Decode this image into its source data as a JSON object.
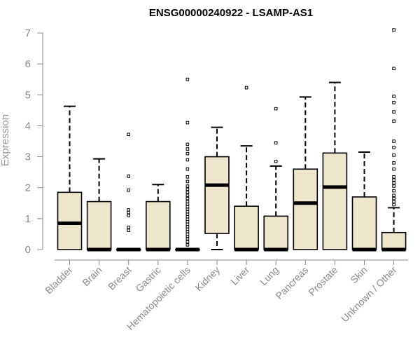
{
  "chart_data": {
    "type": "box",
    "title": "ENSG00000240922 - LSAMP-AS1",
    "xlabel": "",
    "ylabel": "Expression",
    "ylim": [
      0,
      7
    ],
    "yticks": [
      "0",
      "1",
      "2",
      "3",
      "4",
      "5",
      "6",
      "7"
    ],
    "grid": false,
    "colors": {
      "box_fill": "#ede6cd",
      "box_stroke": "#000000",
      "axis": "#8a8a8a"
    },
    "categories": [
      "Bladder",
      "Brain",
      "Breast",
      "Gastric",
      "Hematopoietic cells",
      "Kidney",
      "Liver",
      "Lung",
      "Pancreas",
      "Prostate",
      "Skin",
      "Unknown / Other"
    ],
    "boxes": [
      {
        "q1": 0,
        "median": 0.85,
        "q3": 1.85,
        "whisker_low": 0,
        "whisker_high": 4.63,
        "outliers": []
      },
      {
        "q1": 0,
        "median": 0,
        "q3": 1.55,
        "whisker_low": 0,
        "whisker_high": 2.93,
        "outliers": []
      },
      {
        "q1": 0,
        "median": 0,
        "q3": 0,
        "whisker_low": 0,
        "whisker_high": 0,
        "outliers": [
          0.62,
          0.72,
          1.1,
          1.2,
          1.28,
          1.92,
          2.37,
          3.72
        ]
      },
      {
        "q1": 0,
        "median": 0,
        "q3": 1.55,
        "whisker_low": 0,
        "whisker_high": 2.1,
        "outliers": []
      },
      {
        "q1": 0,
        "median": 0,
        "q3": 0,
        "whisker_low": 0,
        "whisker_high": 0,
        "outliers": [
          0.15,
          0.25,
          0.35,
          0.42,
          0.5,
          0.58,
          0.66,
          0.74,
          0.82,
          0.9,
          0.98,
          1.06,
          1.14,
          1.22,
          1.3,
          1.38,
          1.46,
          1.55,
          1.65,
          1.75,
          1.85,
          1.95,
          2.05,
          2.2,
          2.35,
          2.6,
          2.9,
          3.1,
          3.25,
          3.4,
          4.1,
          5.5
        ]
      },
      {
        "q1": 0.52,
        "median": 2.08,
        "q3": 3.0,
        "whisker_low": 0,
        "whisker_high": 3.95,
        "outliers": []
      },
      {
        "q1": 0,
        "median": 0,
        "q3": 1.4,
        "whisker_low": 0,
        "whisker_high": 3.35,
        "outliers": [
          5.23
        ]
      },
      {
        "q1": 0,
        "median": 0,
        "q3": 1.08,
        "whisker_low": 0,
        "whisker_high": 2.7,
        "outliers": [
          2.85,
          3.45,
          4.55
        ]
      },
      {
        "q1": 0,
        "median": 1.5,
        "q3": 2.6,
        "whisker_low": 0,
        "whisker_high": 4.93,
        "outliers": []
      },
      {
        "q1": 0,
        "median": 2.02,
        "q3": 3.12,
        "whisker_low": 0,
        "whisker_high": 5.4,
        "outliers": []
      },
      {
        "q1": 0,
        "median": 0,
        "q3": 1.7,
        "whisker_low": 0,
        "whisker_high": 3.15,
        "outliers": []
      },
      {
        "q1": 0,
        "median": 0,
        "q3": 0.55,
        "whisker_low": 0,
        "whisker_high": 1.35,
        "outliers": [
          1.45,
          1.55,
          1.65,
          1.75,
          1.9,
          2.05,
          2.15,
          2.25,
          2.35,
          2.6,
          2.8,
          3.05,
          3.3,
          3.5,
          4.15,
          4.45,
          4.75,
          4.95,
          5.85,
          7.1
        ]
      }
    ]
  }
}
